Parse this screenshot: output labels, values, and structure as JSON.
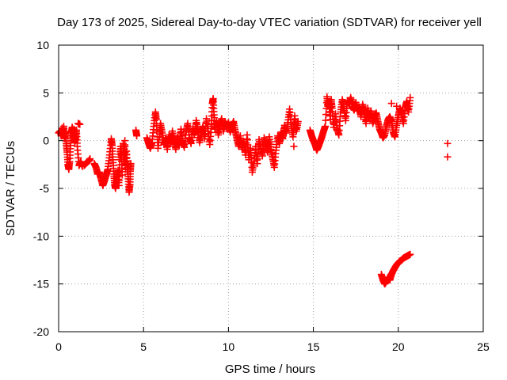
{
  "chart_data": {
    "type": "scatter",
    "title": "Day 173 of 2025, Sidereal Day-to-day VTEC variation (SDTVAR) for receiver yell",
    "xlabel": "GPS time / hours",
    "ylabel": "SDTVAR / TECUs",
    "xlim": [
      0,
      25
    ],
    "ylim": [
      -20,
      10
    ],
    "xticks": [
      0,
      5,
      10,
      15,
      20,
      25
    ],
    "yticks": [
      10,
      5,
      0,
      -5,
      -10,
      -15,
      -20
    ],
    "xtick_labels": [
      "0",
      "5",
      "10",
      "15",
      "20",
      "25"
    ],
    "ytick_labels": [
      "10",
      "5",
      "0",
      "-5",
      "-10",
      "-15",
      "-20"
    ],
    "grid": true,
    "marker": "plus",
    "series": [
      {
        "name": "SDTVAR",
        "color": "#ff0000",
        "points": [
          [
            0.0,
            0.8
          ],
          [
            0.1,
            1.0
          ],
          [
            0.15,
            0.5
          ],
          [
            0.2,
            1.3
          ],
          [
            0.25,
            0.6
          ],
          [
            0.3,
            1.5
          ],
          [
            0.35,
            0.2
          ],
          [
            0.4,
            1.0
          ],
          [
            0.45,
            -0.3
          ],
          [
            0.5,
            -1.2
          ],
          [
            0.55,
            -2.5
          ],
          [
            0.6,
            -3.0
          ],
          [
            0.65,
            -2.2
          ],
          [
            0.7,
            -0.5
          ],
          [
            0.75,
            0.8
          ],
          [
            0.8,
            1.4
          ],
          [
            0.85,
            0.4
          ],
          [
            0.9,
            1.2
          ],
          [
            0.95,
            -0.2
          ],
          [
            1.0,
            0.3
          ],
          [
            1.05,
            1.1
          ],
          [
            1.1,
            -0.6
          ],
          [
            1.2,
            -2.6
          ],
          [
            1.3,
            -2.2
          ],
          [
            1.4,
            -2.7
          ],
          [
            1.15,
            1.8
          ],
          [
            1.25,
            1.7
          ],
          [
            1.5,
            -2.6
          ],
          [
            1.6,
            -2.4
          ],
          [
            1.7,
            -2.2
          ],
          [
            1.8,
            -2.1
          ],
          [
            1.85,
            -1.9
          ],
          [
            2.1,
            -2.4
          ],
          [
            2.2,
            -2.8
          ],
          [
            2.3,
            -3.5
          ],
          [
            2.4,
            -3.3
          ],
          [
            2.5,
            -4.0
          ],
          [
            2.6,
            -4.7
          ],
          [
            2.7,
            -4.2
          ],
          [
            2.8,
            -3.6
          ],
          [
            2.9,
            -3.0
          ],
          [
            3.0,
            -1.5
          ],
          [
            3.1,
            0.2
          ],
          [
            3.15,
            -0.5
          ],
          [
            3.2,
            -2.0
          ],
          [
            3.25,
            -3.5
          ],
          [
            3.3,
            -4.6
          ],
          [
            3.35,
            -5.0
          ],
          [
            3.4,
            -4.3
          ],
          [
            3.5,
            -3.1
          ],
          [
            3.55,
            -4.7
          ],
          [
            3.6,
            -2.0
          ],
          [
            3.65,
            -0.6
          ],
          [
            3.7,
            -1.8
          ],
          [
            3.75,
            -3.6
          ],
          [
            3.8,
            -0.3
          ],
          [
            3.85,
            -2.2
          ],
          [
            3.9,
            0.0
          ],
          [
            3.95,
            -3.0
          ],
          [
            4.0,
            -1.1
          ],
          [
            4.05,
            -2.8
          ],
          [
            4.1,
            -4.0
          ],
          [
            4.15,
            -5.4
          ],
          [
            4.2,
            -4.6
          ],
          [
            4.22,
            -3.2
          ],
          [
            4.25,
            -2.4
          ],
          [
            4.55,
            1.1
          ],
          [
            4.6,
            0.5
          ],
          [
            5.2,
            0.3
          ],
          [
            5.3,
            -0.3
          ],
          [
            5.4,
            -0.8
          ],
          [
            5.5,
            -0.2
          ],
          [
            5.6,
            1.5
          ],
          [
            5.7,
            3.0
          ],
          [
            5.75,
            2.2
          ],
          [
            5.85,
            -0.8
          ],
          [
            5.95,
            0.7
          ],
          [
            6.0,
            1.8
          ],
          [
            6.1,
            0.8
          ],
          [
            6.2,
            -0.4
          ],
          [
            6.3,
            0.2
          ],
          [
            6.4,
            -0.9
          ],
          [
            6.5,
            0.6
          ],
          [
            6.6,
            -0.3
          ],
          [
            6.7,
            1.0
          ],
          [
            6.8,
            -0.1
          ],
          [
            6.9,
            -0.9
          ],
          [
            7.0,
            0.4
          ],
          [
            7.1,
            -0.5
          ],
          [
            7.2,
            1.2
          ],
          [
            7.3,
            0.0
          ],
          [
            7.4,
            -0.7
          ],
          [
            7.5,
            0.9
          ],
          [
            7.6,
            1.8
          ],
          [
            7.7,
            0.3
          ],
          [
            7.8,
            -0.3
          ],
          [
            7.9,
            1.3
          ],
          [
            8.0,
            0.6
          ],
          [
            8.1,
            2.1
          ],
          [
            8.2,
            1.1
          ],
          [
            8.3,
            -0.2
          ],
          [
            8.4,
            0.8
          ],
          [
            8.5,
            1.5
          ],
          [
            8.6,
            0.2
          ],
          [
            8.7,
            2.3
          ],
          [
            8.8,
            1.0
          ],
          [
            8.9,
            -0.4
          ],
          [
            9.0,
            1.7
          ],
          [
            9.05,
            3.9
          ],
          [
            9.1,
            4.4
          ],
          [
            9.15,
            2.7
          ],
          [
            9.2,
            1.2
          ],
          [
            9.3,
            2.0
          ],
          [
            9.4,
            0.6
          ],
          [
            9.5,
            1.6
          ],
          [
            9.6,
            2.3
          ],
          [
            9.7,
            1.0
          ],
          [
            9.8,
            2.0
          ],
          [
            9.9,
            1.4
          ],
          [
            10.0,
            1.9
          ],
          [
            10.1,
            0.9
          ],
          [
            10.2,
            1.5
          ],
          [
            10.3,
            2.0
          ],
          [
            10.4,
            1.0
          ],
          [
            10.5,
            0.2
          ],
          [
            10.6,
            -0.6
          ],
          [
            10.7,
            0.5
          ],
          [
            10.8,
            -0.9
          ],
          [
            10.9,
            -0.1
          ],
          [
            11.0,
            -1.5
          ],
          [
            11.1,
            0.6
          ],
          [
            11.2,
            -2.0
          ],
          [
            11.3,
            -0.8
          ],
          [
            11.4,
            -3.3
          ],
          [
            11.5,
            -2.2
          ],
          [
            11.6,
            -0.6
          ],
          [
            11.7,
            -2.4
          ],
          [
            11.8,
            0.1
          ],
          [
            11.9,
            -0.8
          ],
          [
            12.0,
            -1.6
          ],
          [
            12.1,
            0.3
          ],
          [
            12.2,
            -0.5
          ],
          [
            12.3,
            -1.2
          ],
          [
            12.4,
            0.4
          ],
          [
            12.5,
            -0.9
          ],
          [
            12.6,
            -1.8
          ],
          [
            12.7,
            -2.8
          ],
          [
            12.8,
            -1.0
          ],
          [
            12.9,
            0.5
          ],
          [
            13.0,
            -0.3
          ],
          [
            13.1,
            0.9
          ],
          [
            13.2,
            0.2
          ],
          [
            13.3,
            1.6
          ],
          [
            13.4,
            0.8
          ],
          [
            13.5,
            1.9
          ],
          [
            13.6,
            3.3
          ],
          [
            13.7,
            1.5
          ],
          [
            13.8,
            0.4
          ],
          [
            13.9,
            2.6
          ],
          [
            14.0,
            1.0
          ],
          [
            14.1,
            2.0
          ],
          [
            13.85,
            -0.6
          ],
          [
            14.8,
            1.1
          ],
          [
            14.9,
            0.5
          ],
          [
            15.0,
            0.0
          ],
          [
            15.1,
            -0.4
          ],
          [
            15.2,
            -1.0
          ],
          [
            15.3,
            -0.6
          ],
          [
            15.4,
            -0.1
          ],
          [
            15.5,
            0.4
          ],
          [
            15.6,
            1.0
          ],
          [
            15.7,
            1.5
          ],
          [
            15.8,
            4.6
          ],
          [
            15.85,
            3.6
          ],
          [
            15.9,
            4.1
          ],
          [
            16.0,
            2.2
          ],
          [
            16.05,
            4.3
          ],
          [
            16.1,
            3.4
          ],
          [
            16.2,
            1.4
          ],
          [
            16.3,
            2.8
          ],
          [
            16.4,
            1.3
          ],
          [
            16.5,
            0.6
          ],
          [
            16.6,
            3.0
          ],
          [
            16.7,
            4.3
          ],
          [
            16.8,
            3.4
          ],
          [
            16.9,
            2.1
          ],
          [
            17.0,
            4.2
          ],
          [
            17.1,
            3.8
          ],
          [
            17.2,
            4.5
          ],
          [
            17.3,
            3.6
          ],
          [
            17.4,
            3.2
          ],
          [
            17.5,
            4.0
          ],
          [
            17.6,
            3.1
          ],
          [
            17.7,
            3.5
          ],
          [
            17.8,
            2.5
          ],
          [
            17.9,
            3.8
          ],
          [
            18.0,
            2.9
          ],
          [
            18.1,
            1.8
          ],
          [
            18.2,
            3.4
          ],
          [
            18.3,
            2.3
          ],
          [
            18.4,
            3.1
          ],
          [
            18.5,
            1.8
          ],
          [
            18.6,
            2.6
          ],
          [
            18.7,
            2.9
          ],
          [
            18.8,
            2.0
          ],
          [
            18.9,
            1.2
          ],
          [
            19.0,
            0.8
          ],
          [
            19.1,
            0.3
          ],
          [
            19.2,
            0.6
          ],
          [
            19.3,
            1.5
          ],
          [
            19.4,
            2.2
          ],
          [
            19.5,
            2.5
          ],
          [
            19.6,
            2.0
          ],
          [
            19.7,
            0.9
          ],
          [
            19.8,
            0.4
          ],
          [
            19.9,
            1.6
          ],
          [
            20.0,
            2.6
          ],
          [
            20.1,
            3.4
          ],
          [
            20.2,
            2.8
          ],
          [
            20.3,
            1.8
          ],
          [
            20.4,
            3.5
          ],
          [
            20.5,
            4.1
          ],
          [
            20.6,
            3.0
          ],
          [
            20.7,
            4.5
          ],
          [
            19.6,
            3.9
          ],
          [
            19.9,
            3.6
          ],
          [
            22.9,
            -0.3
          ],
          [
            22.9,
            -1.7
          ],
          [
            19.0,
            -14.0
          ],
          [
            19.1,
            -14.6
          ],
          [
            19.2,
            -15.0
          ],
          [
            19.3,
            -14.7
          ],
          [
            19.4,
            -14.3
          ],
          [
            19.5,
            -14.6
          ],
          [
            19.6,
            -14.0
          ],
          [
            19.7,
            -13.6
          ],
          [
            19.8,
            -13.3
          ],
          [
            19.9,
            -13.0
          ],
          [
            20.0,
            -12.8
          ],
          [
            20.1,
            -12.6
          ],
          [
            20.2,
            -12.5
          ],
          [
            20.3,
            -12.3
          ],
          [
            20.4,
            -12.2
          ],
          [
            20.5,
            -12.1
          ],
          [
            20.6,
            -12.0
          ],
          [
            20.7,
            -11.9
          ]
        ]
      }
    ]
  }
}
